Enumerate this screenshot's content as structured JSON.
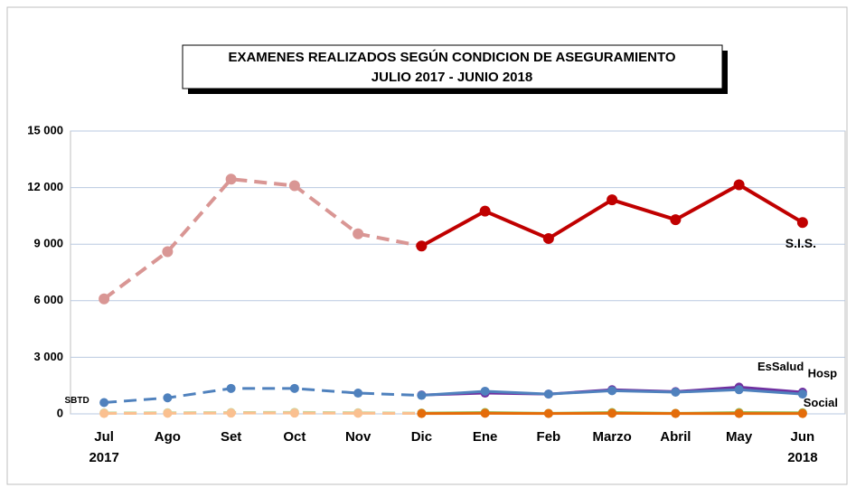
{
  "chart_data": {
    "type": "line",
    "title": "EXAMENES  REALIZADOS SEGÚN CONDICION DE ASEGURAMIENTO",
    "subtitle": "JULIO 2017  -  JUNIO 2018",
    "categories": [
      "Jul",
      "Ago",
      "Set",
      "Oct",
      "Nov",
      "Dic",
      "Ene",
      "Feb",
      "Marzo",
      "Abril",
      "May",
      "Jun"
    ],
    "start_year": "2017",
    "end_year": "2018",
    "dashed_through": "Dic",
    "series": [
      {
        "name": "S.I.S.",
        "color": "#c00000",
        "dashed_color": "#d99694",
        "values": [
          6100,
          8600,
          12450,
          12100,
          9550,
          8900,
          10750,
          9300,
          11350,
          10300,
          12150,
          10150
        ]
      },
      {
        "name": "EsSalud",
        "color": "#7030a0",
        "dashed_color": "#7030a0",
        "values": [
          null,
          null,
          null,
          null,
          null,
          1000,
          1100,
          1050,
          1280,
          1180,
          1420,
          1150
        ]
      },
      {
        "name": "Hosp",
        "color": "#4f81bd",
        "dashed_color": "#4f81bd",
        "values": [
          600,
          850,
          1350,
          1350,
          1100,
          980,
          1200,
          1050,
          1230,
          1150,
          1280,
          1050
        ]
      },
      {
        "name": "Social",
        "color": "#9bbb59",
        "dashed_color": "#c3d69b",
        "values": [
          50,
          60,
          70,
          80,
          60,
          40,
          70,
          30,
          70,
          30,
          70,
          60
        ]
      },
      {
        "name": "SBTD",
        "color": "#e46c0a",
        "dashed_color": "#fac090",
        "values": [
          20,
          30,
          40,
          40,
          30,
          20,
          30,
          20,
          30,
          20,
          20,
          20
        ]
      }
    ],
    "ylim": [
      0,
      15000
    ],
    "yticks": [
      0,
      {
        "value": 3000,
        "label": "3 000"
      },
      {
        "value": 6000,
        "label": "6 000"
      },
      {
        "value": 9000,
        "label": "9 000"
      },
      {
        "value": 12000,
        "label": "12 000"
      },
      {
        "value": 15000,
        "label": "15 000"
      }
    ],
    "grid": true
  }
}
